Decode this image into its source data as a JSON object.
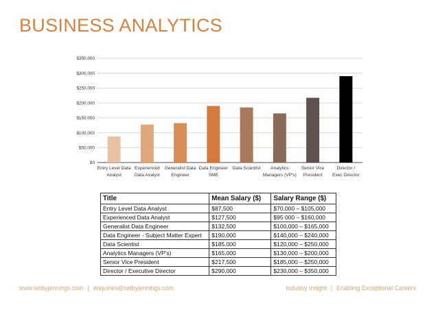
{
  "title": "BUSINESS ANALYTICS",
  "chart_data": {
    "type": "bar",
    "categories": [
      [
        "Entry Level Data",
        "Analyst"
      ],
      [
        "Experienced",
        "Data Analyst"
      ],
      [
        "Generalist Data",
        "Engineer"
      ],
      [
        "Data Engineer",
        "SME"
      ],
      [
        "Data Scientist"
      ],
      [
        "Analytics",
        "Managers (VP's)"
      ],
      [
        "Senior Vice",
        "President"
      ],
      [
        "Director /",
        "Exec Director"
      ]
    ],
    "values": [
      87500,
      127500,
      132500,
      190000,
      185000,
      165000,
      217500,
      290000
    ],
    "colors": [
      "#e8c2a3",
      "#e0a67c",
      "#d98e58",
      "#d47a3c",
      "#a8795a",
      "#8a6a58",
      "#5e534f",
      "#000000"
    ],
    "ylim": [
      0,
      350000
    ],
    "yticks": [
      0,
      50000,
      100000,
      150000,
      200000,
      250000,
      300000,
      350000
    ],
    "ytick_labels": [
      "$0",
      "$50,000",
      "$100,000",
      "$150,000",
      "$200,000",
      "$250,000",
      "$300,000",
      "$350,000"
    ],
    "grid": true
  },
  "table": {
    "headers": [
      "Title",
      "Mean Salary ($)",
      "Salary Range ($)"
    ],
    "rows": [
      [
        "Entry Level Data Analyst",
        "$87,500",
        "$70,000 – $105,000"
      ],
      [
        "Experienced Data Analyst",
        "$127,500",
        "$95 000 – $160,000"
      ],
      [
        "Generalist Data Engineer",
        "$132,500",
        "$100,000 – $165,000"
      ],
      [
        "Data Engineer - Subject Matter Expert",
        "$190,000",
        "$140,000 – $240,000"
      ],
      [
        "Data Scientist",
        "$185,000",
        "$120,000 – $250,000"
      ],
      [
        "Analytics Managers (VP's)",
        "$165,000",
        "$130,000 – $200,000"
      ],
      [
        "Senior Vice President",
        "$217,500",
        "$185,000 – $250,000"
      ],
      [
        "Director / Executive Director",
        "$290,000",
        "$230,000 – $350,000"
      ]
    ]
  },
  "footer": {
    "website": "www.selbyjennings.com",
    "email": "enquiries@selbyjennings.com",
    "tagline_1": "Industry Insight",
    "tagline_2": "Enabling Exceptional Careers",
    "separator": "|"
  }
}
